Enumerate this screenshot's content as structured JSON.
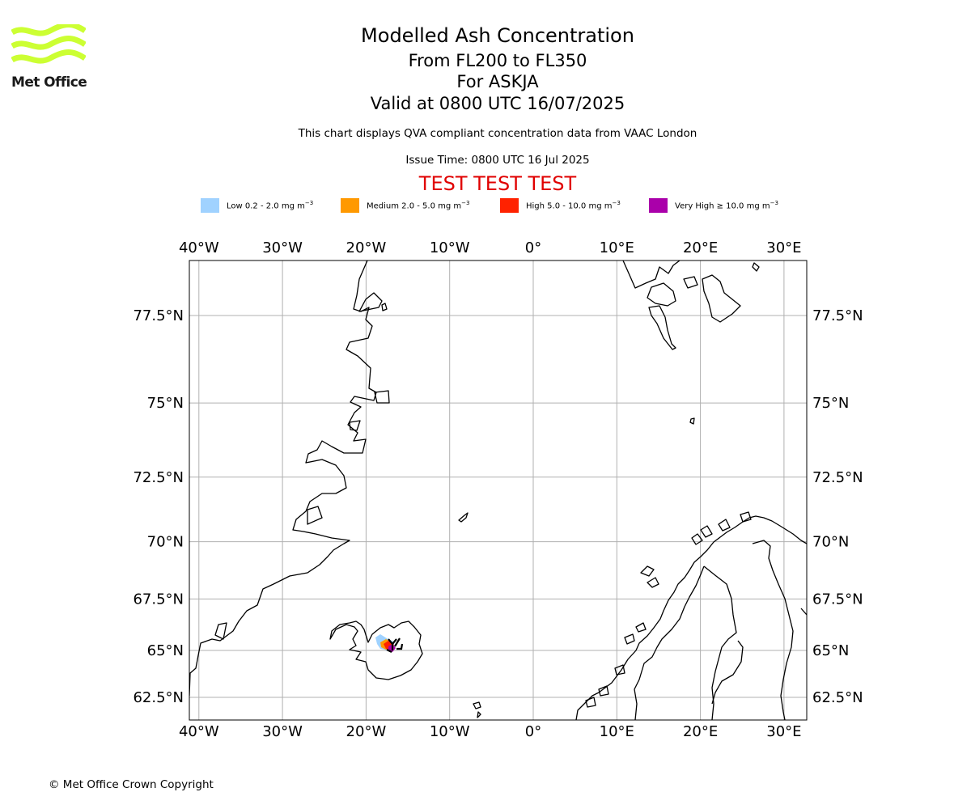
{
  "logo": {
    "text": "Met Office",
    "color": "#ccff33"
  },
  "titles": {
    "main": "Modelled Ash Concentration",
    "levels": "From FL200 to FL350",
    "volcano": "For ASKJA",
    "valid": "Valid at 0800 UTC 16/07/2025",
    "info": "This chart displays QVA compliant concentration data from VAAC London",
    "issue": "Issue Time: 0800 UTC 16 Jul 2025",
    "test": "TEST TEST TEST"
  },
  "legend": [
    {
      "label": "Low 0.2 - 2.0 mg m",
      "color": "#a0d2ff"
    },
    {
      "label": "Medium 2.0 - 5.0 mg m",
      "color": "#ff9900"
    },
    {
      "label": "High 5.0 - 10.0 mg m",
      "color": "#ff2200"
    },
    {
      "label": "Very High ≥ 10.0 mg m",
      "color": "#aa00aa"
    }
  ],
  "legend_unit_exponent": "−3",
  "map": {
    "lon_ticks": [
      {
        "lon": -40,
        "label": "40°W"
      },
      {
        "lon": -30,
        "label": "30°W"
      },
      {
        "lon": -20,
        "label": "20°W"
      },
      {
        "lon": -10,
        "label": "10°W"
      },
      {
        "lon": 0,
        "label": "0°"
      },
      {
        "lon": 10,
        "label": "10°E"
      },
      {
        "lon": 20,
        "label": "20°E"
      },
      {
        "lon": 30,
        "label": "30°E"
      }
    ],
    "lat_ticks": [
      {
        "lat": 77.5,
        "label": "77.5°N"
      },
      {
        "lat": 75,
        "label": "75°N"
      },
      {
        "lat": 72.5,
        "label": "72.5°N"
      },
      {
        "lat": 70,
        "label": "70°N"
      },
      {
        "lat": 67.5,
        "label": "67.5°N"
      },
      {
        "lat": 65,
        "label": "65°N"
      },
      {
        "lat": 62.5,
        "label": "62.5°N"
      }
    ],
    "volcano_location": {
      "name": "ASKJA",
      "lat": 65.03,
      "lon": -16.75
    }
  },
  "copyright": "© Met Office Crown Copyright"
}
